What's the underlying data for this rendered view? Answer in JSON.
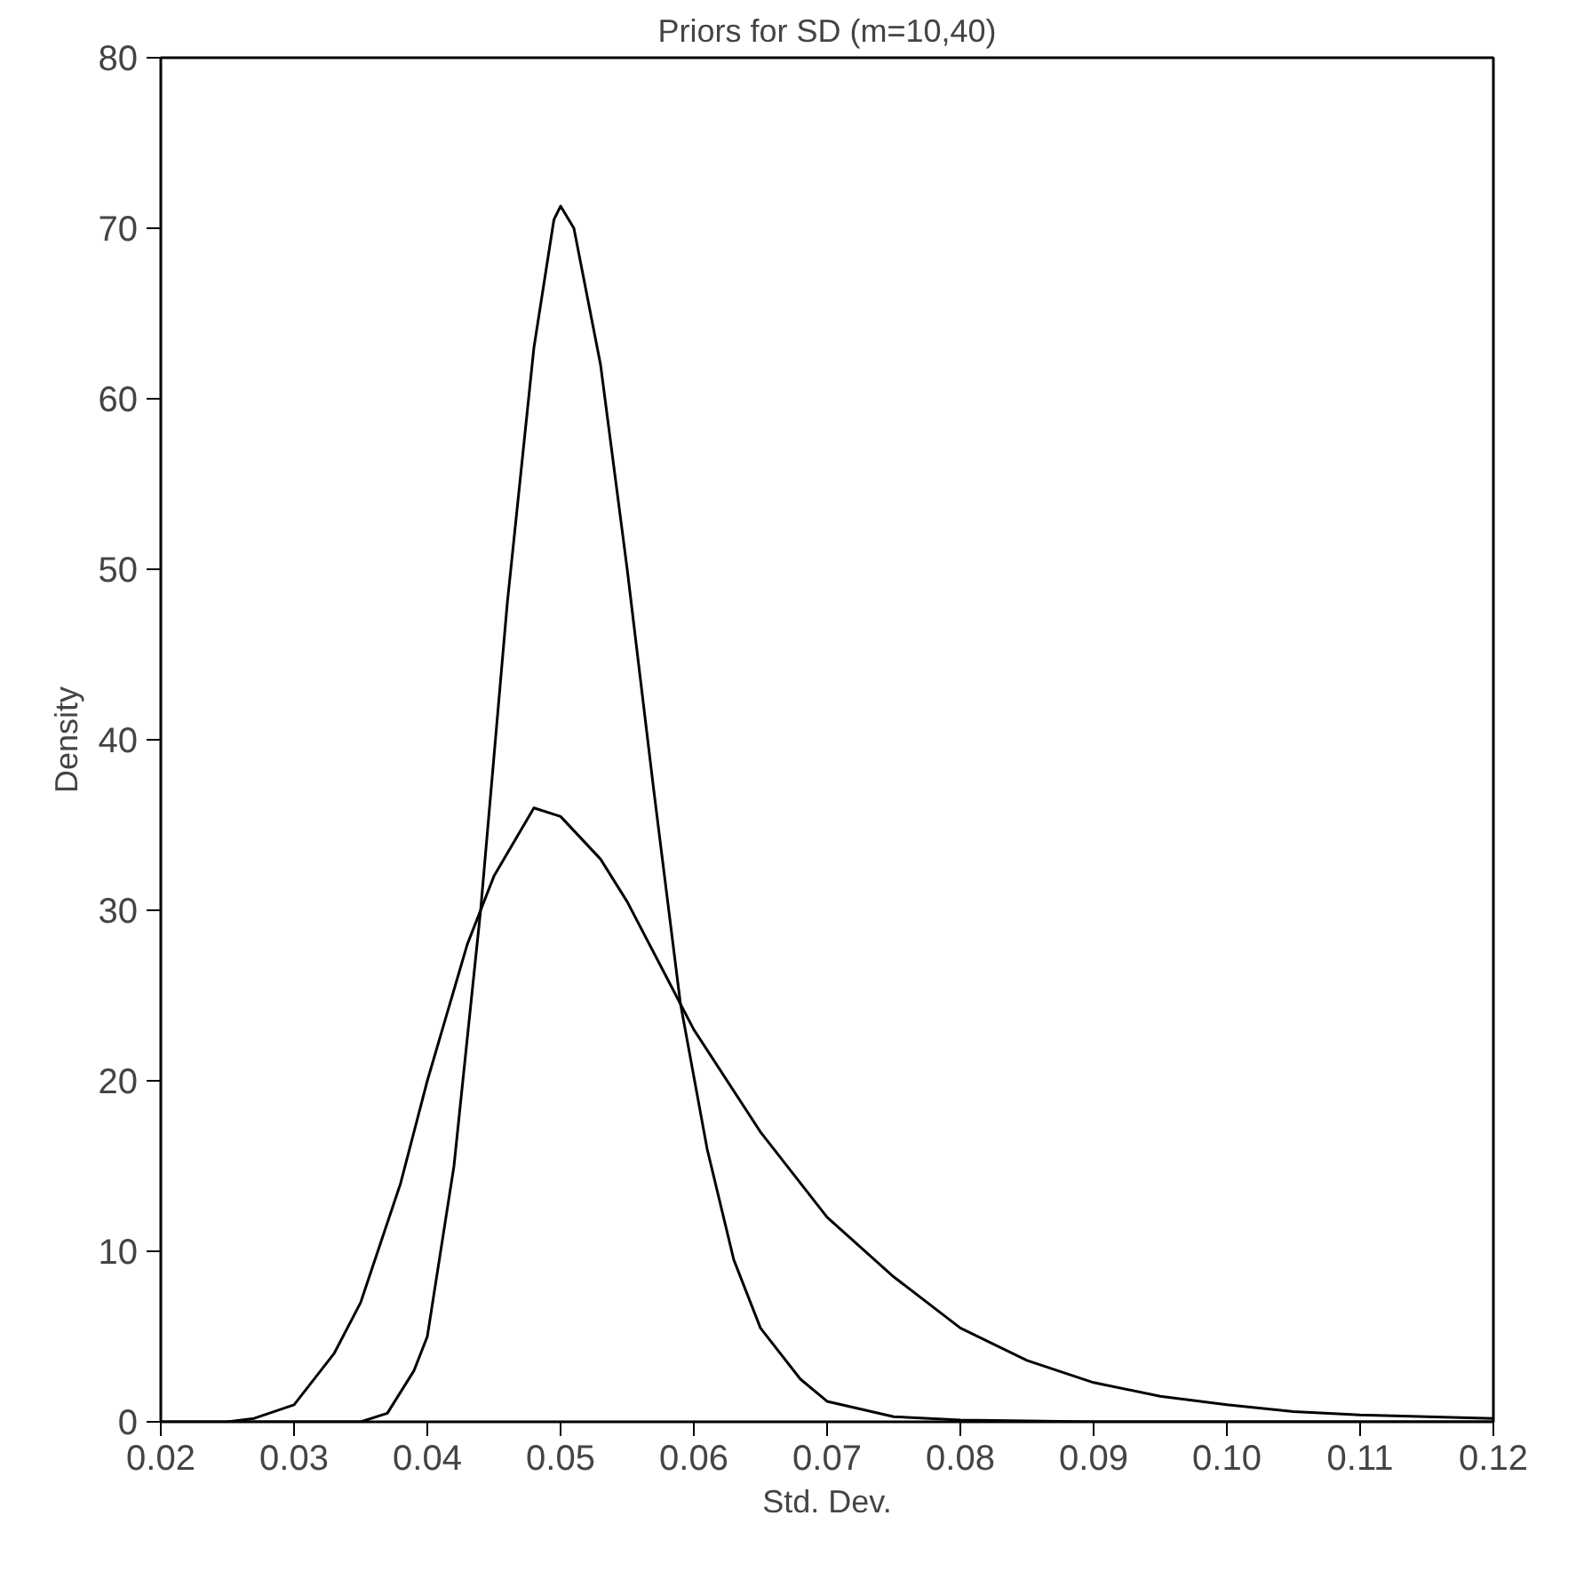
{
  "chart_data": {
    "type": "line",
    "title": "Priors for SD (m=10,40)",
    "xlabel": "Std. Dev.",
    "ylabel": "Density",
    "xlim": [
      0.02,
      0.12
    ],
    "ylim": [
      0,
      80
    ],
    "xticks": [
      {
        "value": 0.02,
        "label": "0.02"
      },
      {
        "value": 0.03,
        "label": "0.03"
      },
      {
        "value": 0.04,
        "label": "0.04"
      },
      {
        "value": 0.05,
        "label": "0.05"
      },
      {
        "value": 0.06,
        "label": "0.06"
      },
      {
        "value": 0.07,
        "label": "0.07"
      },
      {
        "value": 0.08,
        "label": "0.08"
      },
      {
        "value": 0.09,
        "label": "0.09"
      },
      {
        "value": 0.1,
        "label": "0.10"
      },
      {
        "value": 0.11,
        "label": "0.11"
      },
      {
        "value": 0.12,
        "label": "0.12"
      }
    ],
    "yticks": [
      0,
      10,
      20,
      30,
      40,
      50,
      60,
      70,
      80
    ],
    "grid": false,
    "marker": "none",
    "line_style": "solid",
    "series": [
      {
        "color": "#000000",
        "x": [
          0.025,
          0.027,
          0.03,
          0.033,
          0.035,
          0.038,
          0.04,
          0.043,
          0.045,
          0.048,
          0.05,
          0.053,
          0.055,
          0.058,
          0.06,
          0.065,
          0.07,
          0.075,
          0.08,
          0.085,
          0.09,
          0.095,
          0.1,
          0.105,
          0.11,
          0.115,
          0.12
        ],
        "values": [
          0,
          0.2,
          1,
          4,
          7,
          14,
          20,
          28,
          32,
          36,
          35.5,
          33,
          30.5,
          26,
          23,
          17,
          12,
          8.5,
          5.5,
          3.6,
          2.3,
          1.5,
          1,
          0.6,
          0.4,
          0.3,
          0.2
        ]
      },
      {
        "color": "#000000",
        "x": [
          0.02,
          0.035,
          0.037,
          0.039,
          0.04,
          0.042,
          0.044,
          0.046,
          0.048,
          0.0495,
          0.05,
          0.051,
          0.053,
          0.055,
          0.057,
          0.059,
          0.061,
          0.063,
          0.065,
          0.068,
          0.07,
          0.075,
          0.08,
          0.09,
          0.12
        ],
        "values": [
          0,
          0,
          0.5,
          3,
          5,
          15,
          30,
          48,
          63,
          70.5,
          71.3,
          70,
          62,
          50,
          37,
          24.5,
          16,
          9.5,
          5.5,
          2.5,
          1.2,
          0.3,
          0.1,
          0,
          0
        ]
      }
    ]
  }
}
